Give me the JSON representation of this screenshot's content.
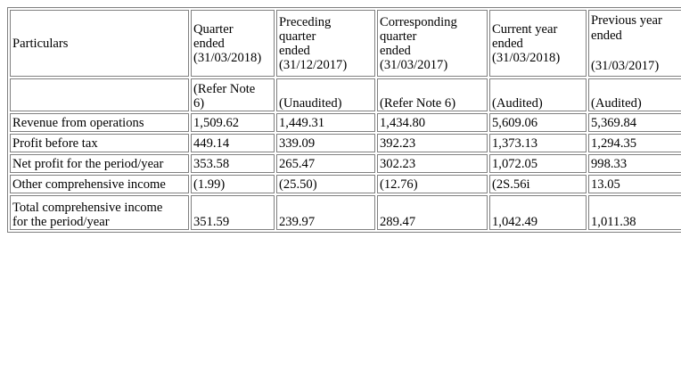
{
  "table": {
    "header": [
      "Particulars",
      "Quarter\nended\n(31/03/2018)",
      "Preceding\nquarter\nended\n(31/12/2017)",
      "Corresponding\nquarter\nended\n(31/03/2017)",
      "Current year\nended\n(31/03/2018)",
      "Previous year\nended\n\n(31/03/2017)"
    ],
    "subheader": [
      "",
      "(Refer Note\n6)",
      "(Unaudited)",
      "(Refer Note 6)",
      "(Audited)",
      "(Audited)"
    ],
    "rows": [
      [
        "Revenue from operations",
        "1,509.62",
        "1,449.31",
        "1,434.80",
        "5,609.06",
        "5,369.84"
      ],
      [
        "Profit before tax",
        "449.14",
        "339.09",
        "392.23",
        "1,373.13",
        "1,294.35"
      ],
      [
        "Net profit for the period/year",
        "353.58",
        "265.47",
        "302.23",
        "1,072.05",
        "998.33"
      ],
      [
        "Other comprehensive income",
        "(1.99)",
        "(25.50)",
        "(12.76)",
        "(2S.56i",
        "13.05"
      ],
      [
        "Total comprehensive income\nfor the period/year",
        "351.59",
        "239.97",
        "289.47",
        "1,042.49",
        "1,011.38"
      ]
    ]
  }
}
